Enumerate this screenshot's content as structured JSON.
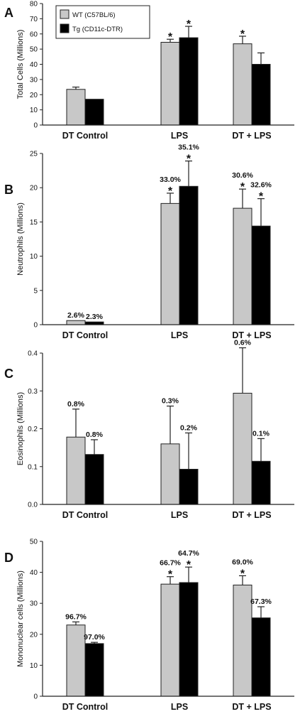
{
  "figure": {
    "legend": [
      {
        "label": "WT (C57BL/6)",
        "color": "#c8c8c8"
      },
      {
        "label": "Tg (CD11c-DTR)",
        "color": "#000000"
      }
    ]
  },
  "chart_data": [
    {
      "panel_letter": "A",
      "type": "bar",
      "ylabel": "Total Cells (Millions)",
      "ylim": [
        0,
        80
      ],
      "yticks": [
        "0",
        "10",
        "20",
        "30",
        "40",
        "50",
        "60",
        "70",
        "80"
      ],
      "categories": [
        "DT Control",
        "LPS",
        "DT + LPS"
      ],
      "series": [
        {
          "name": "WT (C57BL/6)",
          "color": "#c8c8c8",
          "values": [
            23.5,
            54.5,
            53.5
          ],
          "errors": [
            1.5,
            2,
            5
          ],
          "labels": [
            "",
            "",
            ""
          ],
          "stars": [
            false,
            true,
            true
          ]
        },
        {
          "name": "Tg (CD11c-DTR)",
          "color": "#000000",
          "values": [
            17,
            57.5,
            40
          ],
          "errors": [
            0,
            7.5,
            7.5
          ],
          "labels": [
            "",
            "",
            ""
          ],
          "stars": [
            false,
            true,
            false
          ]
        }
      ]
    },
    {
      "panel_letter": "B",
      "type": "bar",
      "ylabel": "Neutrophils (Millions)",
      "ylim": [
        0,
        25
      ],
      "yticks": [
        "0",
        "5",
        "10",
        "15",
        "20",
        "25"
      ],
      "categories": [
        "DT Control",
        "LPS",
        "DT + LPS"
      ],
      "series": [
        {
          "name": "WT (C57BL/6)",
          "color": "#c8c8c8",
          "values": [
            0.6,
            17.7,
            17
          ],
          "errors": [
            0,
            1.5,
            2.8
          ],
          "labels": [
            "2.6%",
            "33.0%",
            "30.6%"
          ],
          "stars": [
            false,
            true,
            true
          ]
        },
        {
          "name": "Tg (CD11c-DTR)",
          "color": "#000000",
          "values": [
            0.4,
            20.2,
            14.4
          ],
          "errors": [
            0,
            3.7,
            4
          ],
          "labels": [
            "2.3%",
            "35.1%",
            "32.6%"
          ],
          "stars": [
            false,
            true,
            true
          ]
        }
      ]
    },
    {
      "panel_letter": "C",
      "type": "bar",
      "ylabel": "Eosinophils (Millions)",
      "ylim": [
        0,
        0.4
      ],
      "yticks": [
        "0.0",
        "0.1",
        "0.2",
        "0.3",
        "0.4"
      ],
      "categories": [
        "DT Control",
        "LPS",
        "DT + LPS"
      ],
      "series": [
        {
          "name": "WT (C57BL/6)",
          "color": "#c8c8c8",
          "values": [
            0.178,
            0.16,
            0.294
          ],
          "errors": [
            0.074,
            0.1,
            0.12
          ],
          "labels": [
            "0.8%",
            "0.3%",
            "0.6%"
          ],
          "stars": [
            false,
            false,
            false
          ]
        },
        {
          "name": "Tg (CD11c-DTR)",
          "color": "#000000",
          "values": [
            0.132,
            0.093,
            0.114
          ],
          "errors": [
            0.039,
            0.096,
            0.06
          ],
          "labels": [
            "0.8%",
            "0.2%",
            "0.1%"
          ],
          "stars": [
            false,
            false,
            false
          ]
        }
      ]
    },
    {
      "panel_letter": "D",
      "type": "bar",
      "ylabel": "Mononuclear cells (Millions)",
      "ylim": [
        0,
        50
      ],
      "yticks": [
        "0",
        "10",
        "20",
        "30",
        "40",
        "50"
      ],
      "categories": [
        "DT Control",
        "LPS",
        "DT + LPS"
      ],
      "series": [
        {
          "name": "WT (C57BL/6)",
          "color": "#c8c8c8",
          "values": [
            23,
            36.2,
            35.9
          ],
          "errors": [
            1,
            2.4,
            3
          ],
          "labels": [
            "96.7%",
            "66.7%",
            "69.0%"
          ],
          "stars": [
            false,
            true,
            true
          ]
        },
        {
          "name": "Tg (CD11c-DTR)",
          "color": "#000000",
          "values": [
            17,
            36.7,
            25.3
          ],
          "errors": [
            0.4,
            5,
            3.6
          ],
          "labels": [
            "97.0%",
            "64.7%",
            "67.3%"
          ],
          "stars": [
            false,
            true,
            false
          ]
        }
      ]
    }
  ]
}
